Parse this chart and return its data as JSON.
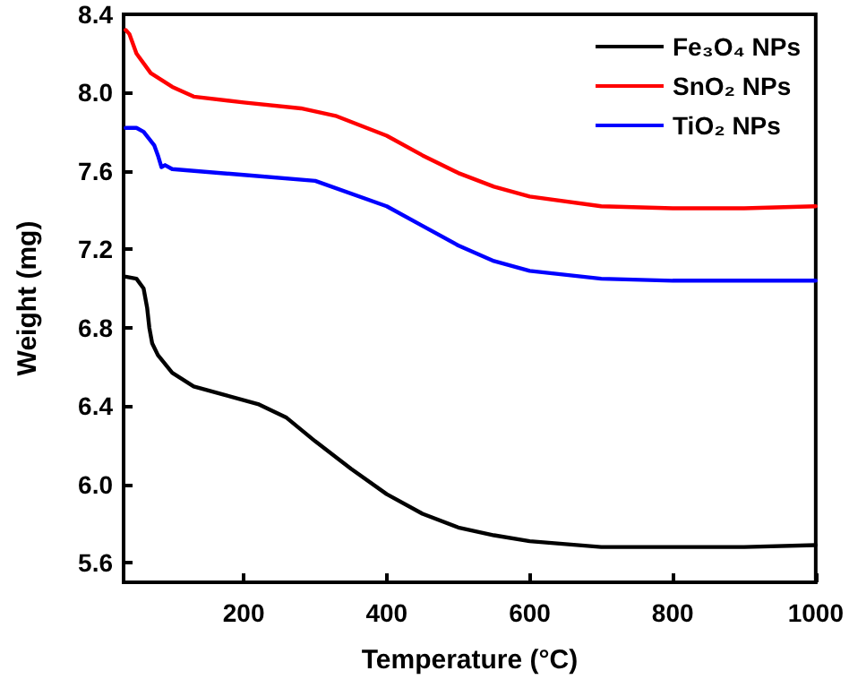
{
  "chart_data": {
    "type": "line",
    "xlabel": "Temperature (°C)",
    "ylabel": "Weight (mg)",
    "xlim": [
      32,
      1000
    ],
    "xticks": [
      200,
      400,
      600,
      800,
      1000
    ],
    "ylim": [
      5.5,
      8.4
    ],
    "yticks": [
      5.6,
      {
        "value": 6,
        "label": "6.0"
      },
      6.4,
      6.8,
      7.2,
      7.6,
      {
        "value": 8,
        "label": "8.0"
      },
      8.4
    ],
    "grid": false,
    "legend": "top right",
    "marker": "none",
    "line_style": "solid",
    "series": [
      {
        "name": "Fe₃O₄ NPs",
        "color": "#000000",
        "x": [
          35,
          50,
          60,
          65,
          68,
          72,
          80,
          100,
          130,
          170,
          220,
          260,
          300,
          350,
          400,
          450,
          500,
          550,
          600,
          700,
          800,
          900,
          1000
        ],
        "values": [
          7.06,
          7.05,
          7.0,
          6.9,
          6.8,
          6.72,
          6.66,
          6.57,
          6.5,
          6.46,
          6.41,
          6.34,
          6.22,
          6.08,
          5.95,
          5.85,
          5.78,
          5.74,
          5.71,
          5.68,
          5.68,
          5.68,
          5.69
        ]
      },
      {
        "name": "SnO₂ NPs",
        "color": "#ff0000",
        "x": [
          35,
          40,
          50,
          70,
          100,
          130,
          200,
          280,
          330,
          400,
          450,
          500,
          550,
          600,
          700,
          800,
          900,
          1000
        ],
        "values": [
          8.32,
          8.3,
          8.2,
          8.1,
          8.03,
          7.98,
          7.95,
          7.92,
          7.88,
          7.78,
          7.68,
          7.59,
          7.52,
          7.47,
          7.42,
          7.41,
          7.41,
          7.42
        ]
      },
      {
        "name": "TiO₂ NPs",
        "color": "#0000ff",
        "x": [
          35,
          50,
          60,
          75,
          80,
          85,
          90,
          100,
          200,
          300,
          400,
          450,
          500,
          550,
          600,
          700,
          800,
          1000
        ],
        "values": [
          7.82,
          7.82,
          7.8,
          7.73,
          7.68,
          7.62,
          7.63,
          7.61,
          7.58,
          7.55,
          7.42,
          7.32,
          7.22,
          7.14,
          7.09,
          7.05,
          7.04,
          7.04
        ]
      }
    ]
  }
}
